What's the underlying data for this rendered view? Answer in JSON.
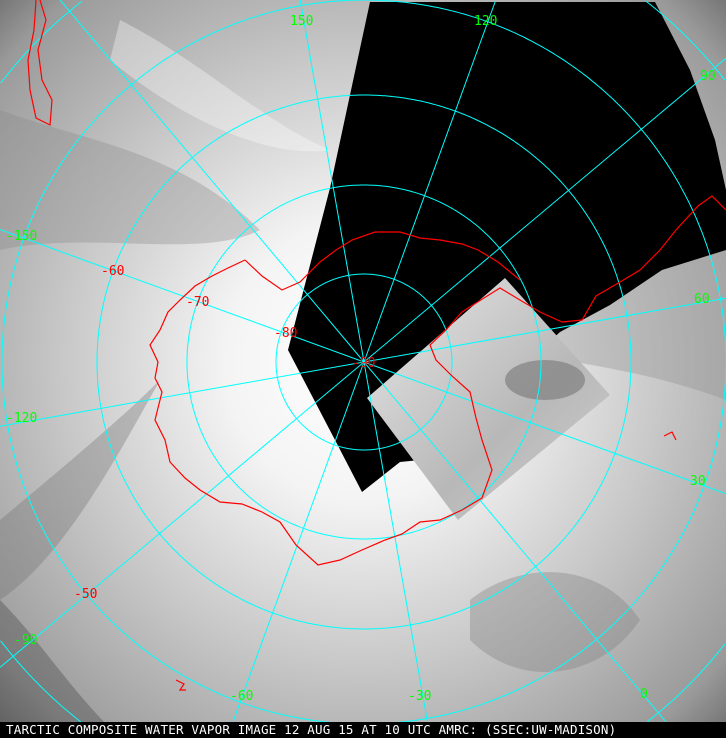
{
  "caption": "TARCTIC COMPOSITE WATER VAPOR IMAGE 12 AUG 15 AT 10 UTC AMRC: (SSEC:UW-MADISON)",
  "colors": {
    "grid": "#00ffff",
    "coastline": "#ff0000",
    "longitude_labels": "#00ff00",
    "latitude_labels": "#ff0000",
    "no_data": "#000000"
  },
  "longitude_labels": [
    {
      "value": 0,
      "text": "0"
    },
    {
      "value": 30,
      "text": "30"
    },
    {
      "value": 60,
      "text": "60"
    },
    {
      "value": 90,
      "text": "90"
    },
    {
      "value": 120,
      "text": "120"
    },
    {
      "value": 150,
      "text": "150"
    },
    {
      "value": -150,
      "text": "-150"
    },
    {
      "value": -120,
      "text": "-120"
    },
    {
      "value": -90,
      "text": "-90"
    },
    {
      "value": -60,
      "text": "-60"
    },
    {
      "value": -30,
      "text": "-30"
    }
  ],
  "latitude_labels": [
    {
      "value": -50,
      "text": "-50"
    },
    {
      "value": -60,
      "text": "-60"
    },
    {
      "value": -70,
      "text": "-70"
    },
    {
      "value": -80,
      "text": "-80"
    },
    {
      "value": -90,
      "text": "-90"
    }
  ]
}
